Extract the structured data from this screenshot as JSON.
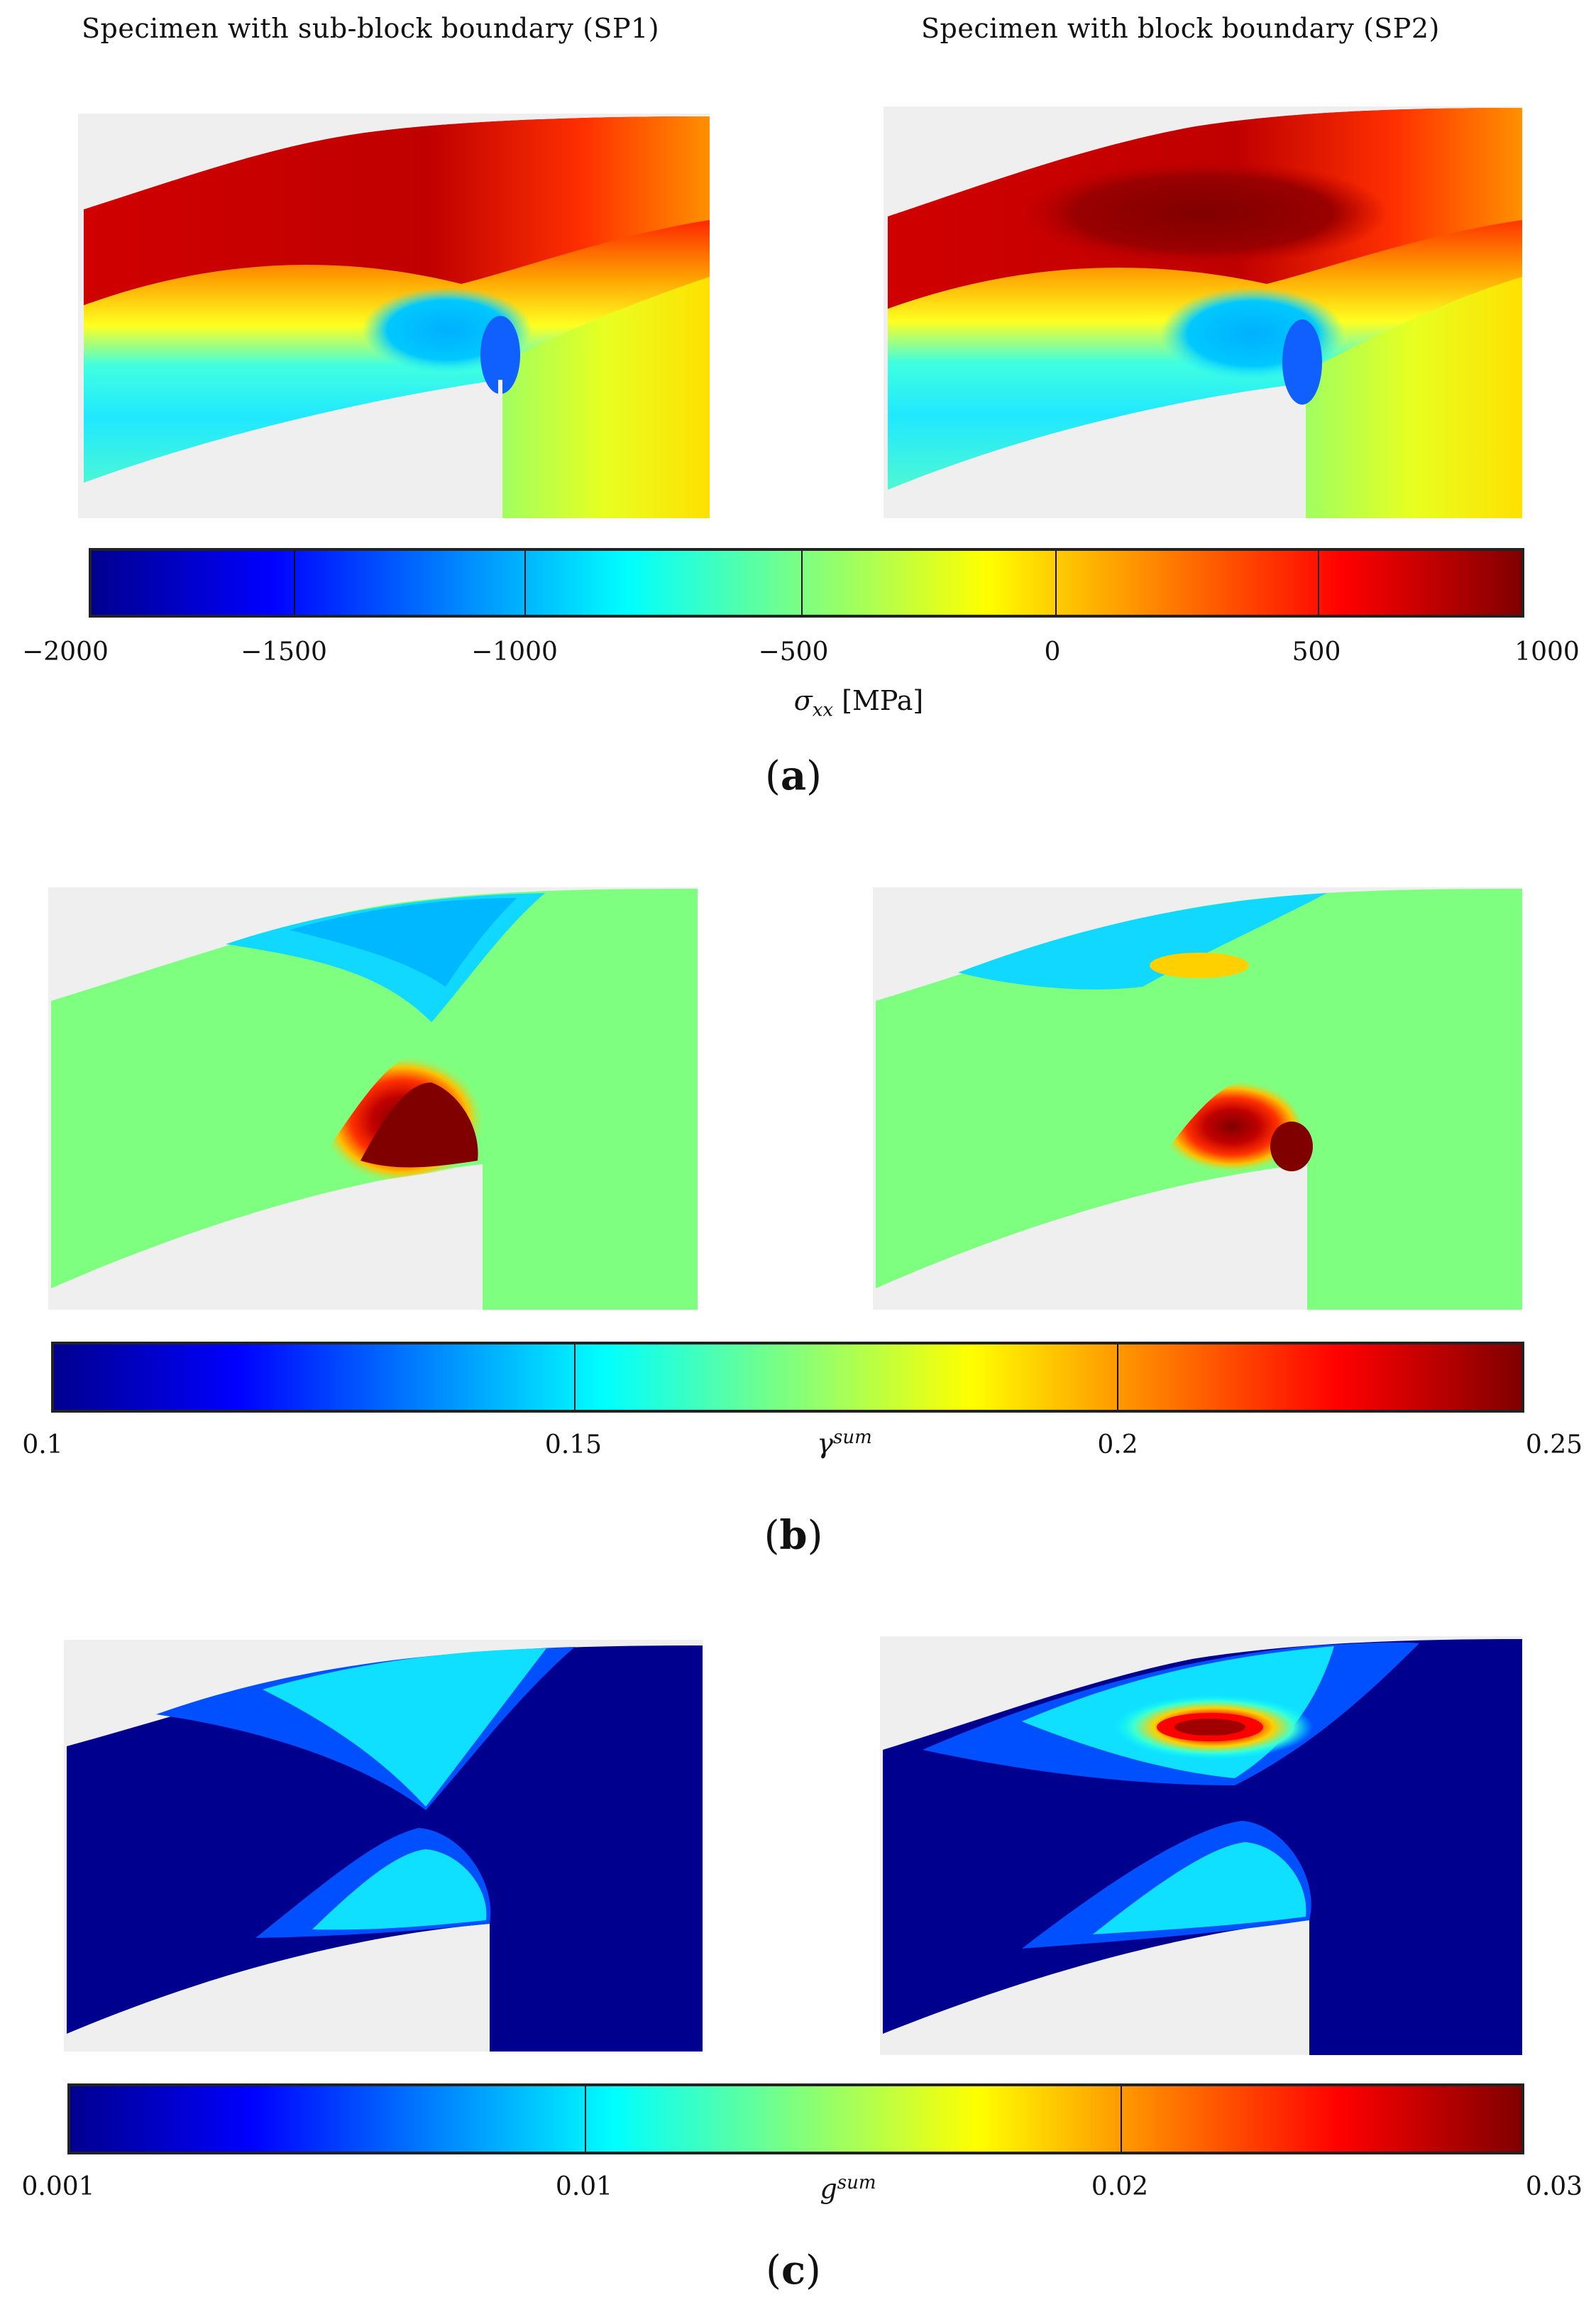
{
  "headers": {
    "left": "Specimen with sub-block boundary (SP1)",
    "right": "Specimen with block boundary (SP2)"
  },
  "panels": [
    {
      "id": "a",
      "label": "a",
      "colorbar": {
        "symbol": "σ",
        "sub": "xx",
        "sup": "",
        "unit": " [MPa]",
        "ticks": [
          "−2000",
          "−1500",
          "−1000",
          "−500",
          "0",
          "500",
          "1000"
        ]
      }
    },
    {
      "id": "b",
      "label": "b",
      "colorbar": {
        "symbol": "γ",
        "sub": "",
        "sup": "sum",
        "unit": "",
        "ticks": [
          "0.1",
          "0.15",
          "0.2",
          "0.25"
        ]
      }
    },
    {
      "id": "c",
      "label": "c",
      "colorbar": {
        "symbol": "g",
        "sub": "",
        "sup": "sum",
        "unit": "",
        "ticks": [
          "0.001",
          "0.01",
          "0.02",
          "0.03"
        ]
      }
    }
  ],
  "colors": {
    "background_mesh": "#efefef",
    "jet_dark_blue": "#00008f",
    "jet_cyan": "#00ffff",
    "jet_green": "#7fff7f",
    "jet_yellow": "#ffff00",
    "jet_red": "#ff0000",
    "jet_dark_red": "#800000"
  }
}
